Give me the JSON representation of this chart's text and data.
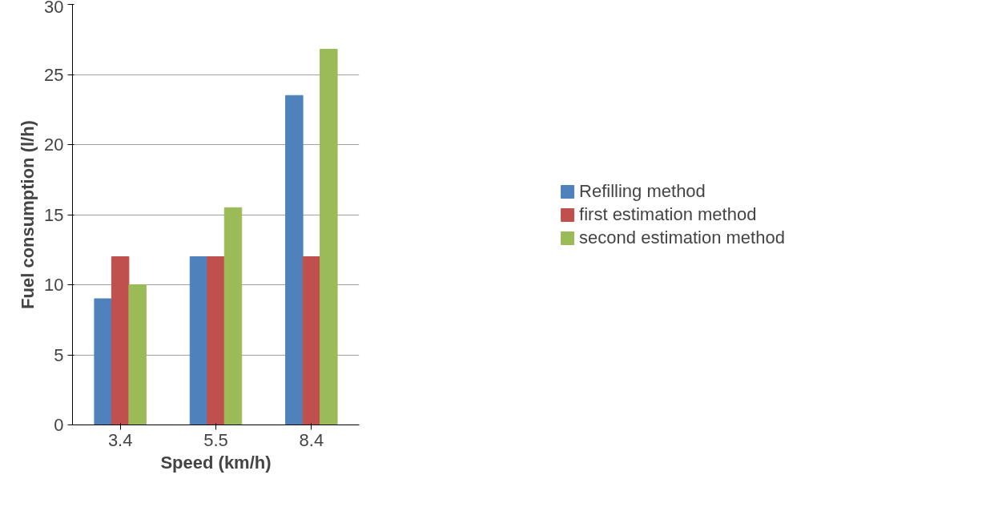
{
  "chart_data": {
    "type": "bar",
    "xlabel": "Speed (km/h)",
    "ylabel": "Fuel consumption (l/h)",
    "categories": [
      "3.4",
      "5.5",
      "8.4"
    ],
    "series": [
      {
        "name": "Refilling method",
        "color": "#4f81bd",
        "values": [
          9,
          12,
          23.5
        ]
      },
      {
        "name": "first estimation method",
        "color": "#c0504d",
        "values": [
          12,
          12,
          12
        ]
      },
      {
        "name": "second estimation method",
        "color": "#9bbb59",
        "values": [
          10,
          15.5,
          26.8
        ]
      }
    ],
    "ylim": [
      0,
      30
    ],
    "yticks": [
      0,
      5,
      10,
      15,
      20,
      25,
      30
    ],
    "grid": "y",
    "legend": "right"
  }
}
